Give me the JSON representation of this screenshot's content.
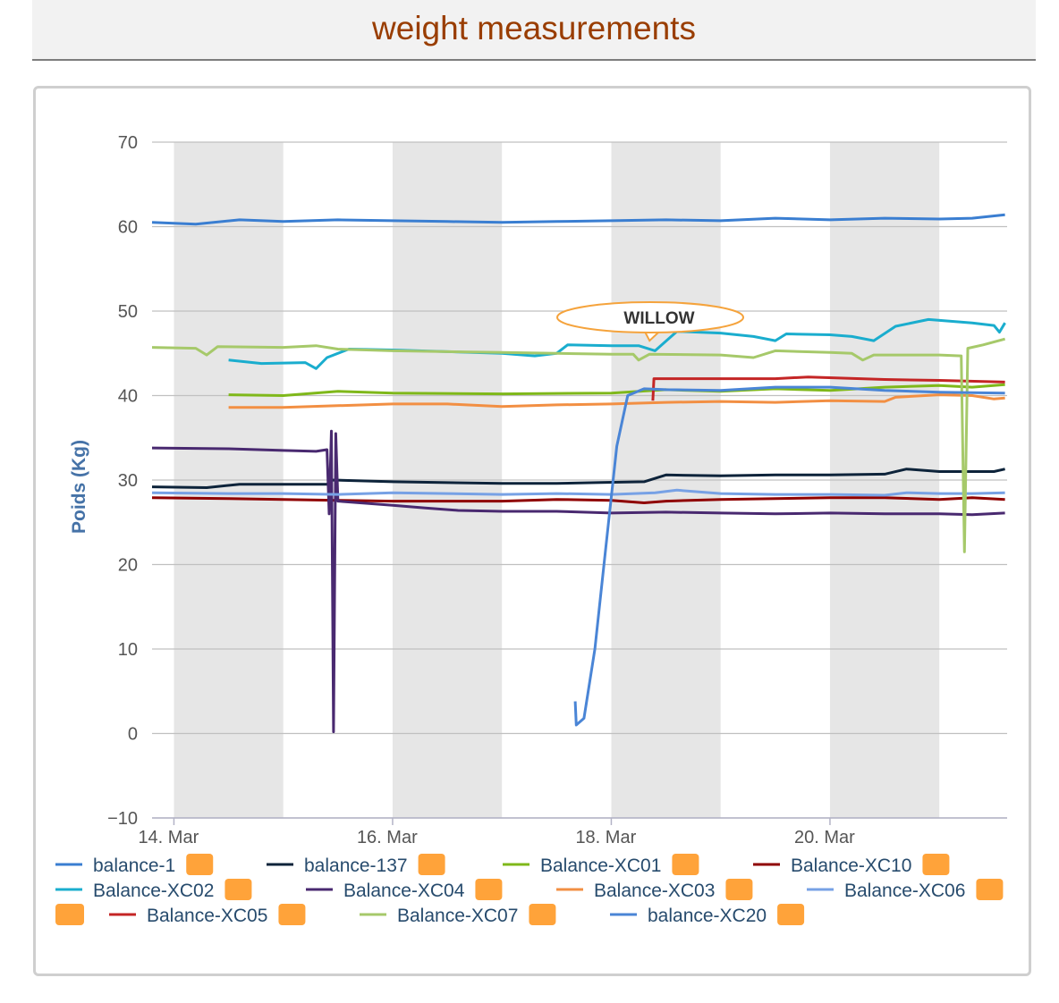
{
  "page": {
    "title": "weight measurements"
  },
  "chart_data": {
    "type": "line",
    "ylabel": "Poids (Kg)",
    "ylim": [
      -10,
      70
    ],
    "yticks": [
      -10,
      0,
      10,
      20,
      30,
      40,
      50,
      60,
      70
    ],
    "xlim_days": [
      13.8,
      21.62
    ],
    "xticks": [
      {
        "label": "14. Mar",
        "day": 14
      },
      {
        "label": "16. Mar",
        "day": 16
      },
      {
        "label": "18. Mar",
        "day": 18
      },
      {
        "label": "20. Mar",
        "day": 20
      }
    ],
    "shaded_bands_days": [
      [
        14,
        15
      ],
      [
        16,
        17
      ],
      [
        18,
        19
      ],
      [
        20,
        21
      ]
    ],
    "grid": true,
    "legend_position": "bottom",
    "legend_badge_color": "#ffa33a",
    "annotation": {
      "text": "WILLOW",
      "series": "Balance-XC02",
      "day": 18.35,
      "value": 46.5
    },
    "series": [
      {
        "name": "balance-1",
        "color": "#3a7ed1",
        "points": [
          [
            13.8,
            60.5
          ],
          [
            14.2,
            60.3
          ],
          [
            14.6,
            60.8
          ],
          [
            15.0,
            60.6
          ],
          [
            15.5,
            60.8
          ],
          [
            16.0,
            60.7
          ],
          [
            16.5,
            60.6
          ],
          [
            17.0,
            60.5
          ],
          [
            17.5,
            60.6
          ],
          [
            18.0,
            60.7
          ],
          [
            18.5,
            60.8
          ],
          [
            19.0,
            60.7
          ],
          [
            19.5,
            61.0
          ],
          [
            20.0,
            60.8
          ],
          [
            20.5,
            61.0
          ],
          [
            21.0,
            60.9
          ],
          [
            21.3,
            61.0
          ],
          [
            21.6,
            61.4
          ]
        ]
      },
      {
        "name": "balance-137",
        "color": "#0d233a",
        "points": [
          [
            13.8,
            29.2
          ],
          [
            14.3,
            29.1
          ],
          [
            14.6,
            29.5
          ],
          [
            15.4,
            29.5
          ],
          [
            15.45,
            30.0
          ],
          [
            16.0,
            29.8
          ],
          [
            17.0,
            29.6
          ],
          [
            17.5,
            29.6
          ],
          [
            17.9,
            29.7
          ],
          [
            18.3,
            29.8
          ],
          [
            18.5,
            30.6
          ],
          [
            19.0,
            30.5
          ],
          [
            19.5,
            30.6
          ],
          [
            20.0,
            30.6
          ],
          [
            20.5,
            30.7
          ],
          [
            20.7,
            31.3
          ],
          [
            21.0,
            31.0
          ],
          [
            21.5,
            31.0
          ],
          [
            21.6,
            31.3
          ]
        ]
      },
      {
        "name": "Balance-XC01",
        "color": "#7fb81a",
        "points": [
          [
            14.5,
            40.1
          ],
          [
            15.0,
            40.0
          ],
          [
            15.5,
            40.5
          ],
          [
            16.0,
            40.3
          ],
          [
            17.0,
            40.2
          ],
          [
            18.0,
            40.3
          ],
          [
            18.5,
            40.7
          ],
          [
            19.0,
            40.5
          ],
          [
            19.5,
            40.8
          ],
          [
            20.0,
            40.6
          ],
          [
            20.5,
            41.0
          ],
          [
            21.0,
            41.2
          ],
          [
            21.3,
            41.0
          ],
          [
            21.6,
            41.3
          ]
        ]
      },
      {
        "name": "Balance-XC10",
        "color": "#8f0000",
        "points": [
          [
            13.8,
            27.9
          ],
          [
            14.5,
            27.8
          ],
          [
            15.0,
            27.7
          ],
          [
            15.5,
            27.6
          ],
          [
            16.0,
            27.5
          ],
          [
            17.0,
            27.5
          ],
          [
            17.5,
            27.7
          ],
          [
            18.0,
            27.6
          ],
          [
            18.3,
            27.3
          ],
          [
            18.5,
            27.5
          ],
          [
            19.0,
            27.7
          ],
          [
            19.5,
            27.8
          ],
          [
            20.0,
            27.9
          ],
          [
            20.5,
            27.9
          ],
          [
            21.0,
            27.7
          ],
          [
            21.3,
            27.9
          ],
          [
            21.6,
            27.7
          ]
        ]
      },
      {
        "name": "Balance-XC02",
        "color": "#1aadce",
        "points": [
          [
            14.5,
            44.2
          ],
          [
            14.8,
            43.8
          ],
          [
            15.2,
            43.9
          ],
          [
            15.3,
            43.2
          ],
          [
            15.4,
            44.5
          ],
          [
            15.6,
            45.5
          ],
          [
            16.0,
            45.4
          ],
          [
            17.0,
            45.0
          ],
          [
            17.3,
            44.7
          ],
          [
            17.5,
            45.0
          ],
          [
            17.6,
            46.0
          ],
          [
            18.0,
            45.9
          ],
          [
            18.25,
            45.9
          ],
          [
            18.4,
            45.3
          ],
          [
            18.6,
            47.6
          ],
          [
            19.0,
            47.4
          ],
          [
            19.3,
            47.0
          ],
          [
            19.5,
            46.5
          ],
          [
            19.6,
            47.3
          ],
          [
            20.0,
            47.2
          ],
          [
            20.2,
            47.0
          ],
          [
            20.4,
            46.5
          ],
          [
            20.6,
            48.2
          ],
          [
            20.9,
            49.0
          ],
          [
            21.3,
            48.6
          ],
          [
            21.5,
            48.3
          ],
          [
            21.55,
            47.5
          ],
          [
            21.6,
            48.6
          ]
        ]
      },
      {
        "name": "Balance-XC04",
        "color": "#492970",
        "points": [
          [
            13.8,
            33.8
          ],
          [
            14.5,
            33.7
          ],
          [
            15.0,
            33.5
          ],
          [
            15.3,
            33.4
          ],
          [
            15.4,
            33.6
          ],
          [
            15.42,
            26.0
          ],
          [
            15.44,
            35.8
          ],
          [
            15.46,
            0.2
          ],
          [
            15.48,
            35.5
          ],
          [
            15.5,
            27.5
          ],
          [
            16.0,
            27.0
          ],
          [
            16.3,
            26.7
          ],
          [
            16.6,
            26.4
          ],
          [
            17.0,
            26.3
          ],
          [
            17.5,
            26.3
          ],
          [
            18.0,
            26.1
          ],
          [
            18.5,
            26.2
          ],
          [
            19.0,
            26.1
          ],
          [
            19.5,
            26.0
          ],
          [
            20.0,
            26.1
          ],
          [
            20.5,
            26.0
          ],
          [
            21.0,
            26.0
          ],
          [
            21.3,
            25.9
          ],
          [
            21.6,
            26.1
          ]
        ]
      },
      {
        "name": "Balance-XC03",
        "color": "#f28f43",
        "points": [
          [
            14.5,
            38.6
          ],
          [
            15.0,
            38.6
          ],
          [
            15.5,
            38.8
          ],
          [
            16.0,
            39.0
          ],
          [
            16.5,
            39.0
          ],
          [
            17.0,
            38.7
          ],
          [
            17.5,
            38.9
          ],
          [
            18.0,
            39.0
          ],
          [
            18.5,
            39.2
          ],
          [
            19.0,
            39.3
          ],
          [
            19.5,
            39.2
          ],
          [
            20.0,
            39.4
          ],
          [
            20.5,
            39.3
          ],
          [
            20.6,
            39.8
          ],
          [
            21.0,
            40.1
          ],
          [
            21.3,
            40.0
          ],
          [
            21.5,
            39.6
          ],
          [
            21.6,
            39.7
          ]
        ]
      },
      {
        "name": "Balance-XC06",
        "color": "#77a1e5",
        "points": [
          [
            13.8,
            28.5
          ],
          [
            14.5,
            28.4
          ],
          [
            15.0,
            28.4
          ],
          [
            15.5,
            28.3
          ],
          [
            16.0,
            28.5
          ],
          [
            16.5,
            28.4
          ],
          [
            17.0,
            28.3
          ],
          [
            17.5,
            28.4
          ],
          [
            18.0,
            28.3
          ],
          [
            18.4,
            28.5
          ],
          [
            18.6,
            28.8
          ],
          [
            19.0,
            28.4
          ],
          [
            19.5,
            28.3
          ],
          [
            20.0,
            28.3
          ],
          [
            20.5,
            28.2
          ],
          [
            20.7,
            28.5
          ],
          [
            21.0,
            28.4
          ],
          [
            21.3,
            28.4
          ],
          [
            21.6,
            28.5
          ]
        ]
      },
      {
        "name": "Balance-XC05",
        "color": "#c42525",
        "points": [
          [
            18.38,
            39.4
          ],
          [
            18.39,
            42.0
          ],
          [
            19.0,
            42.0
          ],
          [
            19.5,
            42.0
          ],
          [
            19.8,
            42.2
          ],
          [
            20.5,
            41.9
          ],
          [
            21.0,
            41.8
          ],
          [
            21.6,
            41.6
          ]
        ]
      },
      {
        "name": "Balance-XC07",
        "color": "#a6c96a",
        "points": [
          [
            13.8,
            45.7
          ],
          [
            14.2,
            45.6
          ],
          [
            14.3,
            44.8
          ],
          [
            14.4,
            45.8
          ],
          [
            15.0,
            45.7
          ],
          [
            15.3,
            45.9
          ],
          [
            15.5,
            45.5
          ],
          [
            16.0,
            45.3
          ],
          [
            16.5,
            45.2
          ],
          [
            17.0,
            45.1
          ],
          [
            17.5,
            45.0
          ],
          [
            18.0,
            44.9
          ],
          [
            18.2,
            44.9
          ],
          [
            18.25,
            44.2
          ],
          [
            18.35,
            44.9
          ],
          [
            19.0,
            44.8
          ],
          [
            19.3,
            44.5
          ],
          [
            19.5,
            45.3
          ],
          [
            20.0,
            45.1
          ],
          [
            20.2,
            45.0
          ],
          [
            20.3,
            44.2
          ],
          [
            20.4,
            44.8
          ],
          [
            21.0,
            44.8
          ],
          [
            21.2,
            44.7
          ],
          [
            21.23,
            21.5
          ],
          [
            21.26,
            45.6
          ],
          [
            21.4,
            46.0
          ],
          [
            21.6,
            46.7
          ]
        ]
      },
      {
        "name": "balance-XC20",
        "color": "#4a85d6",
        "points": [
          [
            17.67,
            3.8
          ],
          [
            17.68,
            1.0
          ],
          [
            17.75,
            1.8
          ],
          [
            17.85,
            10.0
          ],
          [
            17.95,
            22.0
          ],
          [
            18.05,
            34.0
          ],
          [
            18.15,
            40.0
          ],
          [
            18.3,
            40.8
          ],
          [
            18.5,
            40.7
          ],
          [
            19.0,
            40.6
          ],
          [
            19.5,
            41.0
          ],
          [
            20.0,
            41.0
          ],
          [
            20.5,
            40.6
          ],
          [
            21.0,
            40.4
          ],
          [
            21.6,
            40.3
          ]
        ]
      }
    ]
  }
}
